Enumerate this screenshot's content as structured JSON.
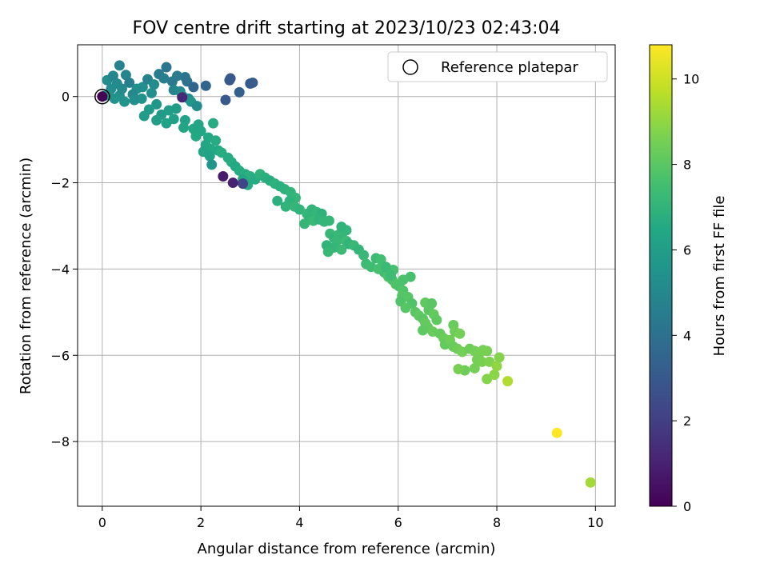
{
  "chart_data": {
    "type": "scatter",
    "title": "FOV centre drift starting at 2023/10/23 02:43:04",
    "xlabel": "Angular distance from reference (arcmin)",
    "ylabel": "Rotation from reference (arcmin)",
    "xlim": [
      -0.5,
      10.4
    ],
    "ylim": [
      -9.5,
      1.2
    ],
    "x_ticks": [
      0,
      2,
      4,
      6,
      8,
      10
    ],
    "y_ticks": [
      0,
      -2,
      -4,
      -6,
      -8
    ],
    "grid": true,
    "legend": {
      "placement": "top-right",
      "entries": [
        "Reference platepar"
      ]
    },
    "colorbar": {
      "label": "Hours from first FF file",
      "min": 0,
      "max": 10.8,
      "ticks": [
        0,
        2,
        4,
        6,
        8,
        10
      ],
      "colormap": "viridis"
    },
    "reference_point": {
      "x": 0,
      "y": 0,
      "c": 0
    },
    "point_columns": [
      "x",
      "y",
      "hours"
    ],
    "points": [
      [
        0.35,
        0.72,
        4.8
      ],
      [
        0.1,
        0.38,
        5.2
      ],
      [
        0.22,
        0.48,
        4.9
      ],
      [
        0.3,
        0.3,
        5.1
      ],
      [
        0.48,
        0.5,
        4.9
      ],
      [
        0.55,
        0.32,
        4.6
      ],
      [
        0.7,
        0.18,
        5.4
      ],
      [
        0.62,
        0.05,
        5.0
      ],
      [
        0.82,
        0.22,
        5.3
      ],
      [
        0.92,
        0.4,
        4.7
      ],
      [
        1.05,
        0.28,
        5.2
      ],
      [
        1.15,
        0.52,
        4.5
      ],
      [
        1.3,
        0.68,
        4.2
      ],
      [
        1.25,
        0.42,
        4.6
      ],
      [
        1.42,
        0.35,
        4.4
      ],
      [
        1.52,
        0.48,
        4.5
      ],
      [
        1.68,
        0.45,
        4.2
      ],
      [
        1.72,
        0.35,
        4.0
      ],
      [
        1.45,
        0.15,
        4.9
      ],
      [
        1.58,
        0.12,
        5.0
      ],
      [
        1.0,
        0.08,
        5.3
      ],
      [
        0.8,
        -0.05,
        5.5
      ],
      [
        0.65,
        -0.08,
        5.3
      ],
      [
        0.45,
        -0.12,
        5.6
      ],
      [
        0.35,
        0.02,
        5.4
      ],
      [
        0.18,
        0.18,
        5.2
      ],
      [
        0.25,
        -0.05,
        5.6
      ],
      [
        0.12,
        0.05,
        5.5
      ],
      [
        0.05,
        0.02,
        5.8
      ],
      [
        0.4,
        0.18,
        5.1
      ],
      [
        1.62,
        0.02,
        5.6
      ],
      [
        1.75,
        -0.05,
        5.1
      ],
      [
        1.8,
        -0.12,
        5.7
      ],
      [
        1.92,
        -0.22,
        5.2
      ],
      [
        1.85,
        0.22,
        3.5
      ],
      [
        2.1,
        0.25,
        3.5
      ],
      [
        2.5,
        -0.08,
        3.0
      ],
      [
        2.58,
        0.38,
        2.9
      ],
      [
        2.6,
        0.42,
        3.0
      ],
      [
        2.78,
        0.1,
        3.3
      ],
      [
        3.0,
        0.3,
        3.0
      ],
      [
        3.05,
        0.32,
        3.1
      ],
      [
        1.62,
        -0.02,
        1.2
      ],
      [
        1.1,
        -0.18,
        5.7
      ],
      [
        1.2,
        -0.42,
        5.8
      ],
      [
        1.35,
        -0.32,
        6.0
      ],
      [
        1.5,
        -0.28,
        5.9
      ],
      [
        1.45,
        -0.52,
        6.1
      ],
      [
        1.3,
        -0.62,
        6.2
      ],
      [
        1.1,
        -0.55,
        6.0
      ],
      [
        0.95,
        -0.3,
        5.8
      ],
      [
        0.85,
        -0.45,
        5.9
      ],
      [
        1.68,
        -0.55,
        6.2
      ],
      [
        1.65,
        -0.72,
        6.3
      ],
      [
        1.85,
        -0.75,
        6.4
      ],
      [
        1.95,
        -0.65,
        6.3
      ],
      [
        1.9,
        -0.92,
        6.5
      ],
      [
        2.0,
        -0.8,
        6.4
      ],
      [
        2.15,
        -0.95,
        6.5
      ],
      [
        2.25,
        -0.62,
        6.6
      ],
      [
        2.1,
        -1.12,
        6.4
      ],
      [
        2.2,
        -1.22,
        6.5
      ],
      [
        2.3,
        -1.02,
        6.6
      ],
      [
        2.35,
        -1.25,
        6.5
      ],
      [
        2.05,
        -1.28,
        6.3
      ],
      [
        2.18,
        -1.38,
        6.2
      ],
      [
        2.22,
        -1.58,
        5.6
      ],
      [
        2.42,
        -1.3,
        6.7
      ],
      [
        2.55,
        -1.42,
        6.6
      ],
      [
        2.62,
        -1.52,
        6.6
      ],
      [
        2.7,
        -1.62,
        6.5
      ],
      [
        2.78,
        -1.72,
        6.6
      ],
      [
        2.9,
        -1.8,
        6.7
      ],
      [
        3.0,
        -1.85,
        6.8
      ],
      [
        3.1,
        -1.92,
        6.6
      ],
      [
        2.85,
        -1.92,
        6.5
      ],
      [
        2.95,
        -2.05,
        6.6
      ],
      [
        2.85,
        -2.02,
        2.2
      ],
      [
        2.65,
        -2.0,
        1.0
      ],
      [
        2.45,
        -1.85,
        0.8
      ],
      [
        3.2,
        -1.8,
        6.9
      ],
      [
        3.3,
        -1.88,
        6.8
      ],
      [
        3.4,
        -1.95,
        6.7
      ],
      [
        3.5,
        -2.02,
        6.9
      ],
      [
        3.6,
        -2.08,
        6.8
      ],
      [
        3.7,
        -2.15,
        6.9
      ],
      [
        3.82,
        -2.22,
        7.0
      ],
      [
        3.92,
        -2.35,
        7.1
      ],
      [
        3.8,
        -2.42,
        6.9
      ],
      [
        3.55,
        -2.42,
        6.8
      ],
      [
        3.72,
        -2.55,
        7.0
      ],
      [
        3.9,
        -2.55,
        7.1
      ],
      [
        4.0,
        -2.62,
        7.0
      ],
      [
        4.15,
        -2.72,
        7.1
      ],
      [
        4.25,
        -2.62,
        7.0
      ],
      [
        4.35,
        -2.68,
        7.1
      ],
      [
        4.45,
        -2.72,
        6.9
      ],
      [
        4.2,
        -2.82,
        7.0
      ],
      [
        4.1,
        -2.95,
        7.1
      ],
      [
        4.28,
        -2.88,
        7.2
      ],
      [
        4.4,
        -2.85,
        7.0
      ],
      [
        4.5,
        -2.9,
        7.1
      ],
      [
        4.6,
        -2.88,
        7.1
      ],
      [
        4.62,
        -3.18,
        7.2
      ],
      [
        4.7,
        -3.28,
        7.0
      ],
      [
        4.8,
        -3.2,
        7.2
      ],
      [
        4.88,
        -3.3,
        7.1
      ],
      [
        4.95,
        -3.35,
        7.3
      ],
      [
        5.0,
        -3.42,
        7.0
      ],
      [
        5.1,
        -3.45,
        7.2
      ],
      [
        4.95,
        -3.1,
        7.1
      ],
      [
        4.85,
        -3.02,
        7.0
      ],
      [
        4.75,
        -3.35,
        7.2
      ],
      [
        4.7,
        -3.5,
        7.1
      ],
      [
        4.55,
        -3.45,
        7.0
      ],
      [
        4.58,
        -3.6,
        7.2
      ],
      [
        4.85,
        -3.55,
        7.3
      ],
      [
        5.2,
        -3.55,
        7.1
      ],
      [
        5.3,
        -3.68,
        7.2
      ],
      [
        5.35,
        -3.88,
        7.3
      ],
      [
        5.45,
        -3.95,
        7.4
      ],
      [
        5.55,
        -3.75,
        7.3
      ],
      [
        5.65,
        -3.78,
        7.5
      ],
      [
        5.6,
        -4.0,
        7.6
      ],
      [
        5.72,
        -4.08,
        7.5
      ],
      [
        5.8,
        -4.18,
        7.7
      ],
      [
        5.9,
        -4.02,
        7.6
      ],
      [
        5.88,
        -4.25,
        7.7
      ],
      [
        5.95,
        -4.35,
        7.8
      ],
      [
        6.02,
        -4.4,
        7.7
      ],
      [
        6.1,
        -4.5,
        7.8
      ],
      [
        6.08,
        -4.62,
        7.9
      ],
      [
        6.05,
        -4.75,
        7.8
      ],
      [
        6.2,
        -4.65,
        7.9
      ],
      [
        6.28,
        -4.8,
        7.8
      ],
      [
        6.15,
        -4.9,
        7.9
      ],
      [
        6.25,
        -4.18,
        7.6
      ],
      [
        6.1,
        -4.25,
        7.7
      ],
      [
        5.85,
        -4.15,
        7.4
      ],
      [
        5.75,
        -3.95,
        7.3
      ],
      [
        6.35,
        -5.0,
        8.0
      ],
      [
        6.42,
        -5.08,
        8.1
      ],
      [
        6.5,
        -5.15,
        8.0
      ],
      [
        6.55,
        -5.25,
        8.2
      ],
      [
        6.62,
        -4.95,
        8.0
      ],
      [
        6.72,
        -5.05,
        8.2
      ],
      [
        6.78,
        -5.18,
        8.1
      ],
      [
        6.55,
        -4.78,
        8.1
      ],
      [
        6.68,
        -4.8,
        8.0
      ],
      [
        6.6,
        -5.35,
        8.2
      ],
      [
        6.5,
        -5.42,
        8.1
      ],
      [
        6.7,
        -5.45,
        8.3
      ],
      [
        6.85,
        -5.5,
        8.2
      ],
      [
        6.92,
        -5.6,
        8.3
      ],
      [
        6.95,
        -5.75,
        8.2
      ],
      [
        7.05,
        -5.65,
        8.4
      ],
      [
        7.12,
        -5.8,
        8.3
      ],
      [
        7.2,
        -5.85,
        8.4
      ],
      [
        7.3,
        -5.92,
        8.5
      ],
      [
        7.12,
        -5.3,
        8.3
      ],
      [
        7.15,
        -5.45,
        8.4
      ],
      [
        7.25,
        -5.5,
        8.5
      ],
      [
        7.45,
        -5.85,
        8.4
      ],
      [
        7.55,
        -5.9,
        8.5
      ],
      [
        7.65,
        -5.95,
        8.6
      ],
      [
        7.72,
        -5.88,
        8.5
      ],
      [
        7.8,
        -5.9,
        8.6
      ],
      [
        7.6,
        -6.1,
        8.5
      ],
      [
        7.7,
        -6.15,
        8.6
      ],
      [
        7.55,
        -6.3,
        8.5
      ],
      [
        7.35,
        -6.35,
        8.4
      ],
      [
        7.22,
        -6.32,
        8.6
      ],
      [
        7.85,
        -6.15,
        8.7
      ],
      [
        7.8,
        -6.55,
        8.8
      ],
      [
        7.95,
        -6.45,
        8.9
      ],
      [
        8.0,
        -6.25,
        9.0
      ],
      [
        8.05,
        -6.05,
        8.8
      ],
      [
        8.22,
        -6.6,
        9.5
      ],
      [
        9.22,
        -7.8,
        10.8
      ],
      [
        9.9,
        -8.95,
        9.3
      ]
    ]
  }
}
